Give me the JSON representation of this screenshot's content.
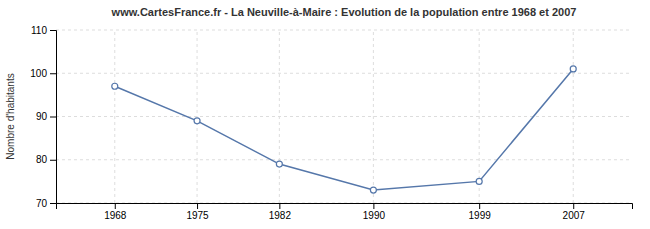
{
  "chart_data": {
    "type": "line",
    "title": "www.CartesFrance.fr - La Neuville-à-Maire : Evolution de la population entre 1968 et 2007",
    "ylabel": "Nombre d'habitants",
    "x": [
      1968,
      1975,
      1982,
      1990,
      1999,
      2007
    ],
    "values": [
      97,
      89,
      79,
      73,
      75,
      101
    ],
    "xlim": [
      1963,
      2012
    ],
    "xticks": [
      1968,
      1975,
      1982,
      1990,
      1999,
      2007
    ],
    "ylim": [
      70,
      110
    ],
    "yticks": [
      70,
      80,
      90,
      100,
      110
    ],
    "color": "#5577aa",
    "marker": "circle",
    "grid": true
  }
}
